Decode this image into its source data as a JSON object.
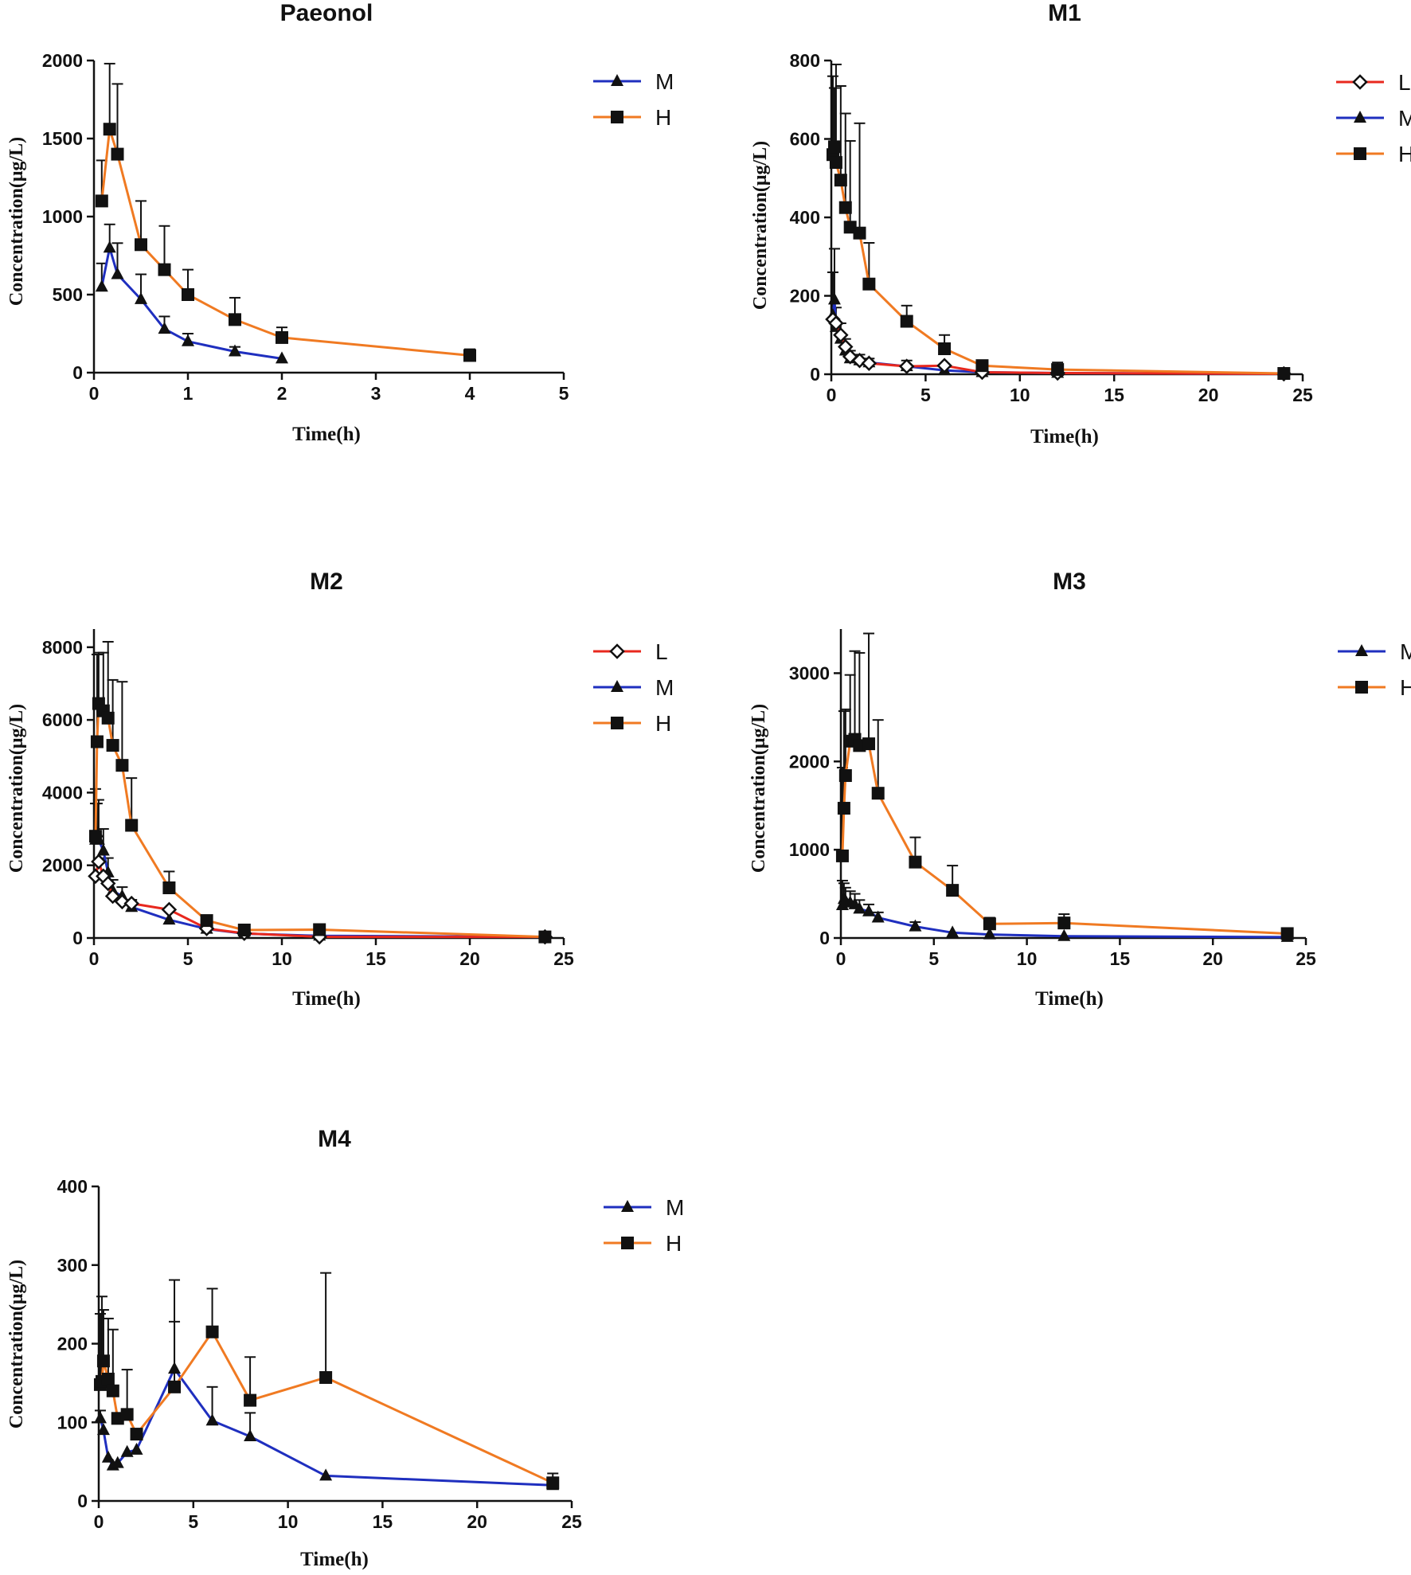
{
  "series_styles": {
    "L": {
      "color": "#e8281e",
      "marker": "diamond-open"
    },
    "M": {
      "color": "#1f2fbf",
      "marker": "triangle"
    },
    "H": {
      "color": "#f07a22",
      "marker": "square"
    }
  },
  "chart_data": [
    {
      "type": "line",
      "title": "Paeonol",
      "xlabel": "Time(h)",
      "ylabel": "Concentration(μg/L)",
      "xlim": [
        0,
        5
      ],
      "ylim": [
        0,
        2000
      ],
      "xticks": [
        0,
        1,
        2,
        3,
        4,
        5
      ],
      "yticks": [
        0,
        500,
        1000,
        1500,
        2000
      ],
      "legend": [
        "M",
        "H"
      ],
      "series": [
        {
          "name": "M",
          "x": [
            0.083,
            0.167,
            0.25,
            0.5,
            0.75,
            1,
            1.5,
            2
          ],
          "y": [
            550,
            800,
            630,
            470,
            280,
            200,
            135,
            90
          ],
          "err": [
            150,
            150,
            200,
            160,
            80,
            50,
            30,
            0
          ]
        },
        {
          "name": "H",
          "x": [
            0.083,
            0.167,
            0.25,
            0.5,
            0.75,
            1,
            1.5,
            2,
            4
          ],
          "y": [
            1100,
            1560,
            1400,
            820,
            660,
            500,
            340,
            225,
            110
          ],
          "err": [
            260,
            420,
            450,
            280,
            280,
            160,
            140,
            65,
            40
          ]
        }
      ]
    },
    {
      "type": "line",
      "title": "M1",
      "xlabel": "Time(h)",
      "ylabel": "Concentration(μg/L)",
      "xlim": [
        0,
        25
      ],
      "ylim": [
        0,
        800
      ],
      "xticks": [
        0,
        5,
        10,
        15,
        20,
        25
      ],
      "yticks": [
        0,
        200,
        400,
        600,
        800
      ],
      "legend": [
        "L",
        "M",
        "H"
      ],
      "series": [
        {
          "name": "L",
          "x": [
            0.083,
            0.25,
            0.5,
            0.75,
            1,
            1.5,
            2,
            4,
            6,
            8,
            12,
            24
          ],
          "y": [
            140,
            130,
            100,
            70,
            45,
            35,
            28,
            20,
            22,
            5,
            3,
            1
          ],
          "err": [
            0,
            0,
            0,
            0,
            0,
            0,
            0,
            0,
            0,
            0,
            0,
            0
          ]
        },
        {
          "name": "M",
          "x": [
            0.083,
            0.167,
            0.25,
            0.5,
            0.75,
            1,
            1.5,
            2,
            4,
            6,
            8,
            12,
            24
          ],
          "y": [
            150,
            190,
            120,
            90,
            60,
            40,
            35,
            30,
            20,
            10,
            5,
            3,
            1
          ],
          "err": [
            110,
            130,
            50,
            40,
            30,
            20,
            15,
            10,
            15,
            10,
            0,
            0,
            0
          ]
        },
        {
          "name": "H",
          "x": [
            0.083,
            0.167,
            0.25,
            0.5,
            0.75,
            1,
            1.5,
            2,
            4,
            6,
            8,
            12,
            24
          ],
          "y": [
            560,
            580,
            540,
            495,
            425,
            375,
            360,
            230,
            135,
            65,
            22,
            12,
            2
          ],
          "err": [
            200,
            150,
            250,
            240,
            240,
            220,
            280,
            105,
            40,
            35,
            0,
            18,
            0
          ]
        }
      ]
    },
    {
      "type": "line",
      "title": "M2",
      "xlabel": "Time(h)",
      "ylabel": "Concentration(μg/L)",
      "xlim": [
        0,
        25
      ],
      "ylim": [
        0,
        8500
      ],
      "xticks": [
        0,
        5,
        10,
        15,
        20,
        25
      ],
      "yticks": [
        0,
        2000,
        4000,
        6000,
        8000
      ],
      "legend": [
        "L",
        "M",
        "H"
      ],
      "series": [
        {
          "name": "L",
          "x": [
            0.083,
            0.25,
            0.5,
            0.75,
            1,
            1.5,
            2,
            4,
            6,
            8,
            12,
            24
          ],
          "y": [
            1700,
            2100,
            1700,
            1500,
            1150,
            1000,
            950,
            780,
            260,
            130,
            30,
            30
          ],
          "err": [
            0,
            0,
            0,
            0,
            0,
            0,
            0,
            0,
            0,
            0,
            0,
            0
          ]
        },
        {
          "name": "M",
          "x": [
            0.083,
            0.167,
            0.25,
            0.5,
            0.75,
            1,
            1.5,
            2,
            4,
            6,
            8,
            12,
            24
          ],
          "y": [
            2700,
            2900,
            2700,
            2400,
            1800,
            1300,
            1150,
            850,
            500,
            250,
            120,
            60,
            30
          ],
          "err": [
            1000,
            800,
            1100,
            600,
            400,
            300,
            250,
            200,
            0,
            0,
            0,
            0,
            0
          ]
        },
        {
          "name": "H",
          "x": [
            0.083,
            0.167,
            0.25,
            0.5,
            0.75,
            1,
            1.5,
            2,
            4,
            6,
            8,
            12,
            24
          ],
          "y": [
            2800,
            5400,
            6450,
            6250,
            6050,
            5300,
            4750,
            3100,
            1380,
            480,
            220,
            230,
            30
          ],
          "err": [
            1300,
            2400,
            1400,
            1600,
            2100,
            1800,
            2300,
            1300,
            450,
            0,
            0,
            0,
            0
          ]
        }
      ]
    },
    {
      "type": "line",
      "title": "M3",
      "xlabel": "Time(h)",
      "ylabel": "Concentration(μg/L)",
      "xlim": [
        0,
        25
      ],
      "ylim": [
        0,
        3500
      ],
      "xticks": [
        0,
        5,
        10,
        15,
        20,
        25
      ],
      "yticks": [
        0,
        1000,
        2000,
        3000
      ],
      "legend": [
        "M",
        "H"
      ],
      "series": [
        {
          "name": "M",
          "x": [
            0.083,
            0.167,
            0.25,
            0.5,
            0.75,
            1,
            1.5,
            2,
            4,
            6,
            8,
            12,
            24
          ],
          "y": [
            370,
            440,
            420,
            400,
            380,
            330,
            300,
            230,
            130,
            60,
            40,
            20,
            10
          ],
          "err": [
            280,
            180,
            150,
            130,
            120,
            100,
            80,
            60,
            50,
            0,
            0,
            0,
            0
          ]
        },
        {
          "name": "H",
          "x": [
            0.083,
            0.167,
            0.25,
            0.5,
            0.75,
            1,
            1.5,
            2,
            4,
            6,
            8,
            12,
            24
          ],
          "y": [
            930,
            1470,
            1840,
            2230,
            2250,
            2180,
            2200,
            1640,
            860,
            540,
            160,
            170,
            50
          ],
          "err": [
            1000,
            1100,
            750,
            750,
            1000,
            1050,
            1250,
            830,
            280,
            280,
            70,
            100,
            0
          ]
        }
      ]
    },
    {
      "type": "line",
      "title": "M4",
      "xlabel": "Time(h)",
      "ylabel": "Concentration(μg/L)",
      "xlim": [
        0,
        25
      ],
      "ylim": [
        0,
        400
      ],
      "xticks": [
        0,
        5,
        10,
        15,
        20,
        25
      ],
      "yticks": [
        0,
        100,
        200,
        300,
        400
      ],
      "legend": [
        "M",
        "H"
      ],
      "series": [
        {
          "name": "M",
          "x": [
            0.083,
            0.25,
            0.5,
            0.75,
            1,
            1.5,
            2,
            4,
            6,
            8,
            12,
            24
          ],
          "y": [
            105,
            90,
            55,
            45,
            48,
            62,
            65,
            168,
            102,
            82,
            32,
            20
          ],
          "err": [
            10,
            0,
            0,
            0,
            0,
            0,
            0,
            60,
            43,
            30,
            0,
            0
          ]
        },
        {
          "name": "H",
          "x": [
            0.083,
            0.167,
            0.25,
            0.5,
            0.75,
            1,
            1.5,
            2,
            4,
            6,
            8,
            12,
            24
          ],
          "y": [
            148,
            152,
            178,
            155,
            140,
            105,
            110,
            85,
            145,
            215,
            128,
            157,
            23
          ],
          "err": [
            90,
            108,
            65,
            77,
            78,
            0,
            57,
            0,
            136,
            55,
            55,
            133,
            12
          ]
        }
      ]
    }
  ]
}
